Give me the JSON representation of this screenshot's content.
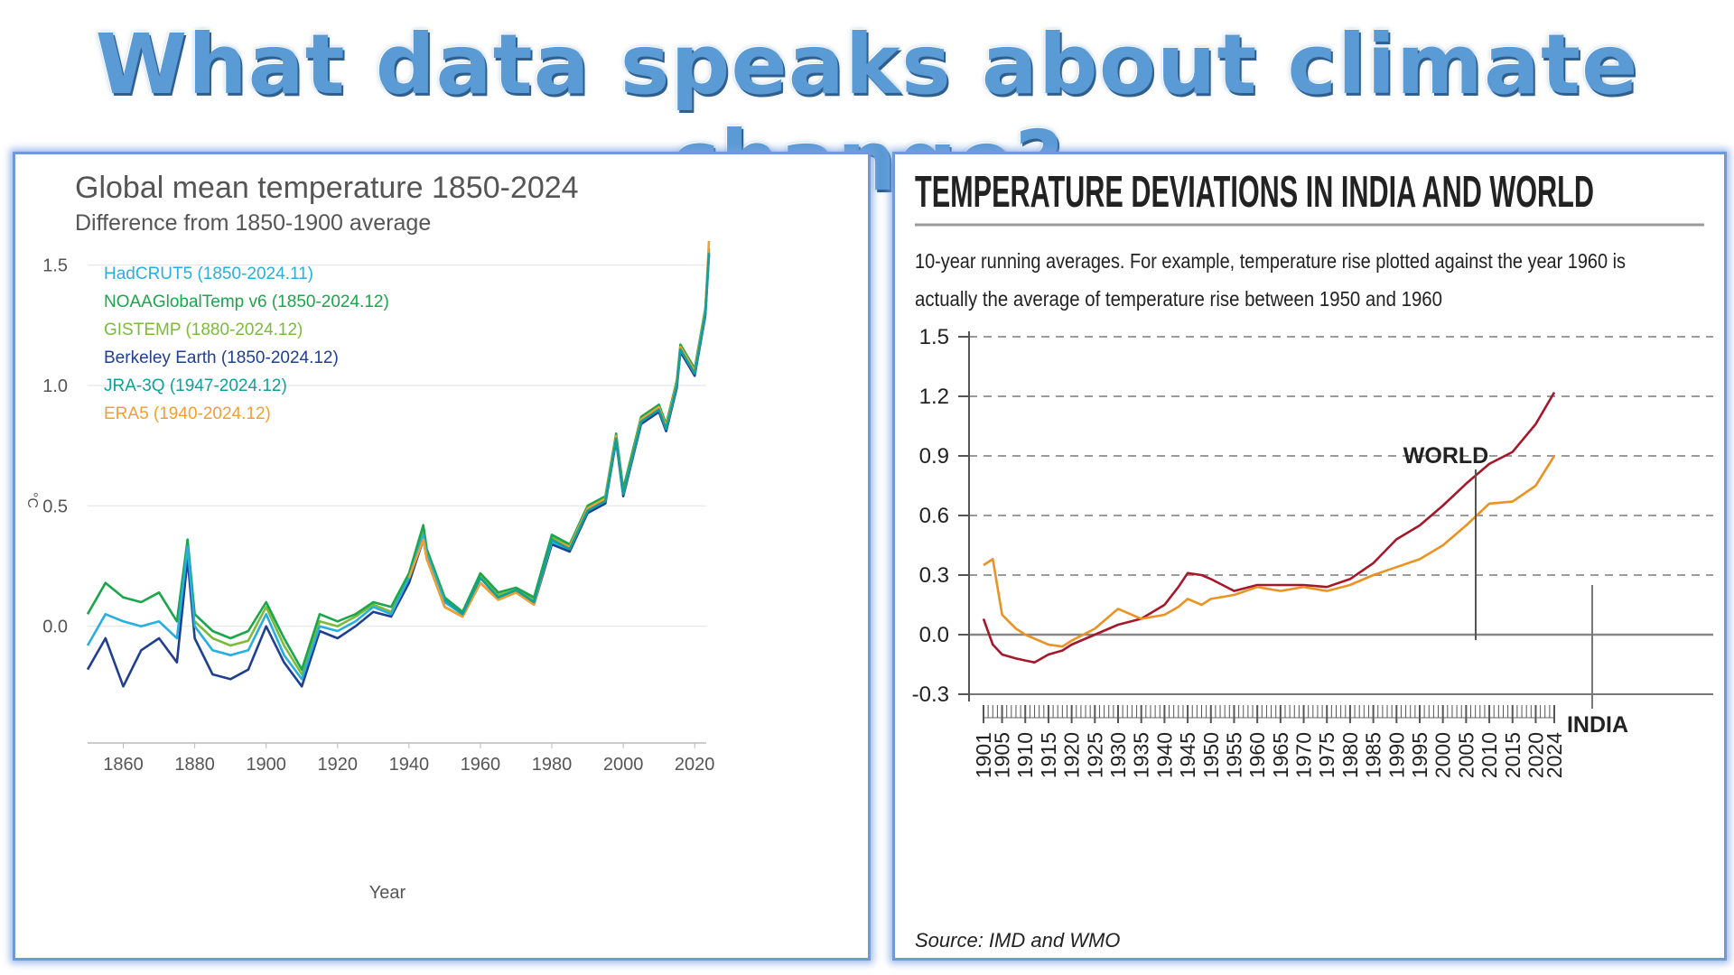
{
  "page": {
    "headline": "What data speaks about climate change?"
  },
  "left_panel": {
    "title": "Global mean temperature 1850-2024",
    "subtitle": "Difference from 1850-1900 average",
    "y_unit_label": "°C",
    "x_axis_label": "Year",
    "legend": [
      {
        "label": "HadCRUT5 (1850-2024.11)",
        "color": "#29aee0"
      },
      {
        "label": "NOAAGlobalTemp v6 (1850-2024.12)",
        "color": "#1aa64a"
      },
      {
        "label": "GISTEMP (1880-2024.12)",
        "color": "#7cbb3a"
      },
      {
        "label": "Berkeley Earth (1850-2024.12)",
        "color": "#1f3f91"
      },
      {
        "label": "JRA-3Q (1947-2024.12)",
        "color": "#12a09a"
      },
      {
        "label": "ERA5 (1940-2024.12)",
        "color": "#f2a02e"
      }
    ]
  },
  "right_panel": {
    "title": "TEMPERATURE DEVIATIONS IN INDIA AND WORLD",
    "description_line1": "10-year running averages. For example, temperature rise plotted against the year 1960 is",
    "description_line2": "actually the average of temperature rise between 1950 and 1960",
    "world_label": "WORLD",
    "india_label": "INDIA",
    "source": "Source: IMD and WMO",
    "world_color": "#a5182b",
    "india_color": "#ea9324"
  },
  "chart_data": [
    {
      "type": "line",
      "title": "Global mean temperature 1850-2024",
      "subtitle": "Difference from 1850-1900 average",
      "xlabel": "Year",
      "ylabel": "°C",
      "xlim": [
        1850,
        2024
      ],
      "ylim": [
        -0.35,
        1.6
      ],
      "yticks": [
        0.0,
        0.5,
        1.0,
        1.5
      ],
      "xticks": [
        1860,
        1880,
        1900,
        1920,
        1940,
        1960,
        1980,
        2000,
        2020
      ],
      "grid": true,
      "legend_position": "top-left",
      "x": [
        1850,
        1855,
        1860,
        1865,
        1870,
        1875,
        1878,
        1880,
        1885,
        1890,
        1895,
        1900,
        1905,
        1910,
        1915,
        1920,
        1925,
        1930,
        1935,
        1940,
        1944,
        1945,
        1950,
        1955,
        1960,
        1965,
        1970,
        1975,
        1980,
        1985,
        1990,
        1995,
        1998,
        2000,
        2005,
        2010,
        2012,
        2015,
        2016,
        2020,
        2023,
        2024
      ],
      "series": [
        {
          "name": "HadCRUT5 (1850-2024.11)",
          "color": "#29aee0",
          "values": [
            -0.08,
            0.05,
            0.02,
            0.0,
            0.02,
            -0.05,
            0.33,
            0.0,
            -0.1,
            -0.12,
            -0.1,
            0.05,
            -0.12,
            -0.22,
            0.0,
            -0.02,
            0.02,
            0.08,
            0.05,
            0.2,
            0.38,
            0.3,
            0.1,
            0.05,
            0.2,
            0.12,
            0.15,
            0.1,
            0.35,
            0.32,
            0.48,
            0.52,
            0.78,
            0.55,
            0.85,
            0.9,
            0.82,
            1.0,
            1.15,
            1.05,
            1.3,
            1.55
          ]
        },
        {
          "name": "NOAAGlobalTemp v6 (1850-2024.12)",
          "color": "#1aa64a",
          "values": [
            0.05,
            0.18,
            0.12,
            0.1,
            0.14,
            0.02,
            0.36,
            0.05,
            -0.02,
            -0.05,
            -0.02,
            0.1,
            -0.05,
            -0.18,
            0.05,
            0.02,
            0.05,
            0.1,
            0.08,
            0.22,
            0.42,
            0.32,
            0.12,
            0.06,
            0.22,
            0.14,
            0.16,
            0.12,
            0.38,
            0.34,
            0.5,
            0.54,
            0.8,
            0.57,
            0.87,
            0.92,
            0.84,
            1.02,
            1.17,
            1.07,
            1.32,
            1.57
          ]
        },
        {
          "name": "GISTEMP (1880-2024.12)",
          "color": "#7cbb3a",
          "values": [
            null,
            null,
            null,
            null,
            null,
            null,
            null,
            0.02,
            -0.05,
            -0.08,
            -0.06,
            0.08,
            -0.08,
            -0.2,
            0.02,
            0.0,
            0.04,
            0.09,
            0.06,
            0.21,
            0.4,
            0.31,
            0.11,
            0.05,
            0.21,
            0.13,
            0.15,
            0.11,
            0.37,
            0.33,
            0.49,
            0.53,
            0.79,
            0.56,
            0.86,
            0.91,
            0.83,
            1.01,
            1.16,
            1.06,
            1.31,
            1.56
          ]
        },
        {
          "name": "Berkeley Earth (1850-2024.12)",
          "color": "#1f3f91",
          "values": [
            -0.18,
            -0.05,
            -0.25,
            -0.1,
            -0.05,
            -0.15,
            0.28,
            -0.05,
            -0.2,
            -0.22,
            -0.18,
            0.0,
            -0.15,
            -0.25,
            -0.02,
            -0.05,
            0.0,
            0.06,
            0.04,
            0.18,
            0.36,
            0.28,
            0.08,
            0.04,
            0.18,
            0.11,
            0.14,
            0.09,
            0.34,
            0.31,
            0.47,
            0.51,
            0.77,
            0.54,
            0.84,
            0.89,
            0.81,
            0.99,
            1.14,
            1.04,
            1.29,
            1.54
          ]
        },
        {
          "name": "JRA-3Q (1947-2024.12)",
          "color": "#12a09a",
          "values": [
            null,
            null,
            null,
            null,
            null,
            null,
            null,
            null,
            null,
            null,
            null,
            null,
            null,
            null,
            null,
            null,
            null,
            null,
            null,
            null,
            null,
            null,
            0.11,
            0.05,
            0.2,
            0.12,
            0.15,
            0.1,
            0.36,
            0.32,
            0.48,
            0.52,
            0.78,
            0.55,
            0.85,
            0.9,
            0.82,
            1.0,
            1.15,
            1.05,
            1.3,
            1.55
          ]
        },
        {
          "name": "ERA5 (1940-2024.12)",
          "color": "#f2a02e",
          "values": [
            null,
            null,
            null,
            null,
            null,
            null,
            null,
            null,
            null,
            null,
            null,
            null,
            null,
            null,
            null,
            null,
            null,
            null,
            null,
            0.2,
            0.36,
            0.28,
            0.08,
            0.04,
            0.18,
            0.11,
            0.14,
            0.09,
            0.36,
            0.33,
            0.49,
            0.53,
            0.79,
            0.55,
            0.86,
            0.91,
            0.83,
            1.01,
            1.16,
            1.06,
            1.31,
            1.6
          ]
        }
      ]
    },
    {
      "type": "line",
      "title": "TEMPERATURE DEVIATIONS IN INDIA AND WORLD",
      "subtitle": "10-year running averages. For example, temperature rise plotted against the year 1960 is actually the average of temperature rise between 1950 and 1960",
      "xlabel": "",
      "ylabel": "",
      "xlim": [
        1901,
        2024
      ],
      "ylim": [
        -0.3,
        1.5
      ],
      "yticks": [
        "1.5",
        "1.2",
        "0.9",
        "0.6",
        "0.3",
        "0.0",
        "-0.3"
      ],
      "ytick_values": [
        1.5,
        1.2,
        0.9,
        0.6,
        0.3,
        0.0,
        -0.3
      ],
      "xticks": [
        "1901",
        "1905",
        "1910",
        "1915",
        "1920",
        "1925",
        "1930",
        "1935",
        "1940",
        "1945",
        "1950",
        "1955",
        "1960",
        "1965",
        "1970",
        "1975",
        "1980",
        "1985",
        "1990",
        "1995",
        "2000",
        "2005",
        "2010",
        "2015",
        "2020",
        "2024"
      ],
      "xtick_values": [
        1901,
        1905,
        1910,
        1915,
        1920,
        1925,
        1930,
        1935,
        1940,
        1945,
        1950,
        1955,
        1960,
        1965,
        1970,
        1975,
        1980,
        1985,
        1990,
        1995,
        2000,
        2005,
        2010,
        2015,
        2020,
        2024
      ],
      "grid": "dashed horizontal",
      "x": [
        1901,
        1903,
        1905,
        1908,
        1910,
        1912,
        1915,
        1918,
        1920,
        1925,
        1930,
        1935,
        1940,
        1943,
        1945,
        1948,
        1950,
        1955,
        1960,
        1965,
        1970,
        1975,
        1980,
        1985,
        1990,
        1995,
        2000,
        2005,
        2010,
        2015,
        2020,
        2024
      ],
      "series": [
        {
          "name": "WORLD",
          "color": "#a5182b",
          "values": [
            0.08,
            -0.05,
            -0.1,
            -0.12,
            -0.13,
            -0.14,
            -0.1,
            -0.08,
            -0.05,
            0.0,
            0.05,
            0.08,
            0.15,
            0.24,
            0.31,
            0.3,
            0.28,
            0.22,
            0.25,
            0.25,
            0.25,
            0.24,
            0.28,
            0.36,
            0.48,
            0.55,
            0.65,
            0.76,
            0.86,
            0.92,
            1.06,
            1.22
          ]
        },
        {
          "name": "INDIA",
          "color": "#ea9324",
          "values": [
            0.35,
            0.38,
            0.1,
            0.03,
            0.0,
            -0.02,
            -0.05,
            -0.06,
            -0.03,
            0.03,
            0.13,
            0.08,
            0.1,
            0.14,
            0.18,
            0.15,
            0.18,
            0.2,
            0.24,
            0.22,
            0.24,
            0.22,
            0.25,
            0.3,
            0.34,
            0.38,
            0.45,
            0.55,
            0.66,
            0.67,
            0.75,
            0.9
          ]
        }
      ]
    }
  ]
}
